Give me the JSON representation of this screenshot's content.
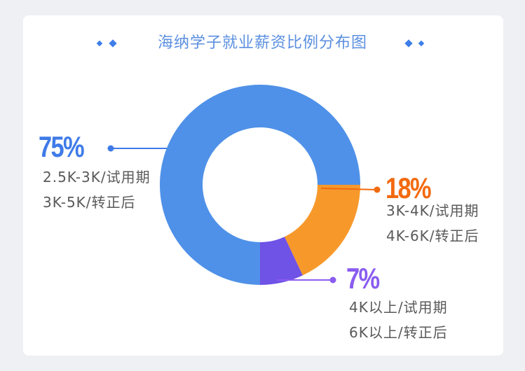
{
  "title": "海纳学子就业薪资比例分布图",
  "colors": {
    "blue": "#4f91e8",
    "orange": "#f7992a",
    "purple": "#6f52e6",
    "pct_blue": "#3f7be8",
    "pct_orange": "#f26a10",
    "pct_purple": "#8a5cf0"
  },
  "chart_data": {
    "type": "pie",
    "donut": true,
    "title": "海纳学子就业薪资比例分布图",
    "slices": [
      {
        "label": "75%",
        "value": 75,
        "lines": [
          "2.5K-3K/试用期",
          "3K-5K/转正后"
        ]
      },
      {
        "label": "18%",
        "value": 18,
        "lines": [
          "3K-4K/试用期",
          "4K-6K/转正后"
        ]
      },
      {
        "label": "7%",
        "value": 7,
        "lines": [
          "4K以上/试用期",
          "6K以上/转正后"
        ]
      }
    ]
  }
}
